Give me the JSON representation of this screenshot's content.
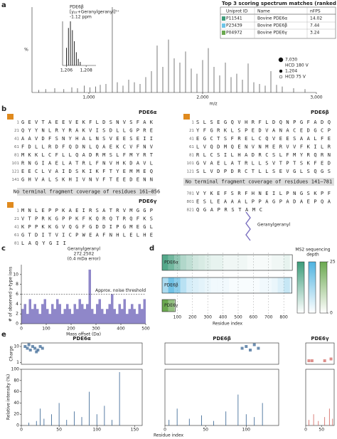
{
  "panels": [
    "a",
    "b",
    "c",
    "d",
    "e"
  ],
  "table": {
    "title": "Top 3 scoring spectrum matches (ranked by nFPS)",
    "headers": [
      "Uniprot ID",
      "Name",
      "nFPS"
    ],
    "rows": [
      {
        "color": "#3c9c7a",
        "cells": [
          "P11541",
          "Bovine PDE6α",
          "14.02"
        ]
      },
      {
        "color": "#6cc4e8",
        "cells": [
          "P23439",
          "Bovine PDE6β",
          "7.44"
        ]
      },
      {
        "color": "#6aa84f",
        "cells": [
          "P04972",
          "Bovine PDE6γ",
          "3.24"
        ]
      }
    ]
  },
  "sequences": {
    "alpha": {
      "title": "PDE6α",
      "numbers": [
        "1",
        "21",
        "41",
        "61",
        "81",
        "101",
        "121",
        "141"
      ],
      "rows": [
        "GEVTAEEVEKFLDSNVSFAK",
        "QYYNLRYRAKVISDLLGPRE",
        "AAVDFSNYHALNSVEESEII",
        "FDLLRDFQDNLQAEKCVFNV",
        "MKKLCFLLQADRMSLFMYRT",
        "RNGIAELATRLFNVHKDAVL",
        "EECLVAIDSKIKFTYEMMEQ",
        "GHVALSKHIVNVFTEEDENN"
      ],
      "note": "No terminal fragment coverage of residues 161–856"
    },
    "gamma": {
      "title": "PDE6γ",
      "numbers": [
        "1",
        "21",
        "41",
        "61",
        "81"
      ],
      "rows": [
        "MNLEPPKAEIRSATRVMGGP",
        "VTPRKGPPKFKQRQTRQFKS",
        "KPPKKGVQGFGDDIPGMEGL",
        "GTDITVICPWEAFNHLELHE",
        "LAQYGII"
      ]
    },
    "beta": {
      "title": "PDE6β",
      "numbers": [
        "1",
        "21",
        "41",
        "61",
        "81",
        "101",
        "121",
        "781",
        "801",
        "821"
      ],
      "rows": [
        "SLSEGQVHRFLDQNPGFADQ",
        "YFGRKLSPEDVANACEDGCP",
        "EGCTSFRELCQVEESAALFE",
        "LVQDMQENVNMERVVFKILR",
        "RLCSILHADRCSLFMYRQRN",
        "GVAELATRLLSVTPTSKFED",
        "SLVDPDRCTLLSEVGLSQGS",
        "VYKEFSRFHNEILPNGSKPF",
        "ESLEAAALPPAGPADAEPQA",
        "QGAPRSTAMC"
      ],
      "note": "No terminal fragment coverage of residues 141–781",
      "modification": "Geranylgeranyl"
    }
  },
  "chart_data": [
    {
      "type": "spectrum",
      "xlabel": "m/z",
      "ylabel": "%",
      "xlim": [
        500,
        3000
      ],
      "ylim": [
        0,
        100
      ],
      "color": "#222222",
      "xticks": [
        {
          "value": 1000,
          "label": "1,000"
        },
        {
          "value": 2000,
          "label": "2,000"
        },
        {
          "value": 3000,
          "label": "3,000"
        }
      ],
      "x": [
        560,
        620,
        700,
        780,
        850,
        900,
        960,
        1010,
        1060,
        1100,
        1150,
        1206,
        1250,
        1300,
        1350,
        1400,
        1450,
        1500,
        1550,
        1600,
        1650,
        1700,
        1750,
        1800,
        1850,
        1900,
        1950,
        2000,
        2050,
        2100,
        2150,
        2200,
        2250,
        2300,
        2350,
        2400,
        2450,
        2500,
        2550,
        2600,
        2650,
        2700,
        2800,
        2900
      ],
      "values": [
        3,
        4,
        5,
        4,
        6,
        5,
        8,
        6,
        7,
        9,
        10,
        100,
        12,
        8,
        15,
        12,
        10,
        18,
        25,
        55,
        30,
        62,
        40,
        35,
        48,
        28,
        22,
        38,
        52,
        30,
        20,
        35,
        18,
        22,
        15,
        34,
        12,
        10,
        8,
        25,
        9,
        7,
        5,
        4
      ],
      "legend": [
        {
          "text": "7,030",
          "marker": "large"
        },
        {
          "text": "HCD 180 V"
        },
        {
          "text": "1,204",
          "marker": "small"
        },
        {
          "text": "HCD 75 V",
          "marker": "open"
        }
      ]
    },
    {
      "type": "spectrum",
      "xlim": [
        1205.6,
        1209
      ],
      "ylim": [
        0,
        100
      ],
      "color": "#222222",
      "xticks": [
        {
          "value": 1206,
          "label": "1,206"
        },
        {
          "value": 1208,
          "label": "1,208"
        }
      ],
      "x": [
        1206.0,
        1206.2,
        1206.4,
        1206.6,
        1206.8,
        1207.0,
        1207.2,
        1207.4
      ],
      "values": [
        40,
        85,
        100,
        80,
        55,
        30,
        15,
        8
      ],
      "annotations": [
        "PDE6β",
        "[y₂₂+Geranylgeranyl]⁵⁺",
        "-1.12 ppm"
      ]
    },
    {
      "type": "histogram",
      "xlabel": "Mass offset (Da)",
      "ylabel": "# of observed y-type ions",
      "color": "#8f87c9",
      "xlim": [
        0,
        500
      ],
      "xticks": [
        0,
        100,
        200,
        300,
        400,
        500
      ],
      "ylim": [
        0,
        12
      ],
      "yticks": [
        0,
        2,
        4,
        6,
        8,
        10
      ],
      "bins": [
        0,
        10,
        20,
        30,
        40,
        50,
        60,
        70,
        80,
        90,
        100,
        110,
        120,
        130,
        140,
        150,
        160,
        170,
        180,
        190,
        200,
        210,
        220,
        230,
        240,
        250,
        260,
        270,
        280,
        290,
        300,
        310,
        320,
        330,
        340,
        350,
        360,
        370,
        380,
        390,
        400,
        410,
        420,
        430,
        440,
        450,
        460,
        470,
        480,
        490,
        500
      ],
      "values": [
        3,
        4,
        2,
        5,
        3,
        4,
        3,
        2,
        4,
        5,
        3,
        2,
        4,
        3,
        5,
        4,
        2,
        3,
        4,
        3,
        2,
        4,
        3,
        5,
        4,
        3,
        4,
        11,
        3,
        2,
        4,
        5,
        3,
        2,
        3,
        4,
        6,
        3,
        2,
        4,
        3,
        5,
        2,
        3,
        4,
        3,
        2,
        4,
        3,
        5
      ],
      "threshold": 6,
      "threshold_label": "Approx. noise threshold",
      "annotations": [
        "Geranylgeranyl",
        "272.2502",
        "(0.4 mDa error)"
      ]
    },
    {
      "type": "heatmap",
      "xlabel": "Residue index",
      "xlim": [
        0,
        860
      ],
      "xticks": [
        100,
        200,
        300,
        400,
        500,
        600,
        700,
        800
      ],
      "bin_width": 40,
      "colorbar_title": [
        "MS2 sequencing",
        "depth"
      ],
      "colorbar_lim": [
        0,
        25
      ],
      "colorbar_ticks": [
        0,
        25
      ],
      "series": [
        {
          "name": "PDE6α",
          "color": "#3c9c7a",
          "length": 856,
          "values": [
            22,
            18,
            14,
            10,
            8,
            6,
            5,
            4,
            3,
            3,
            2,
            2,
            2,
            2,
            1,
            1,
            1,
            1,
            2,
            2,
            3,
            1
          ]
        },
        {
          "name": "PDE6β",
          "color": "#4fb3e0",
          "length": 854,
          "values": [
            12,
            20,
            16,
            10,
            6,
            5,
            4,
            3,
            2,
            2,
            2,
            1,
            1,
            1,
            1,
            1,
            2,
            2,
            3,
            5,
            8,
            4
          ]
        },
        {
          "name": "PDE6γ",
          "color": "#6aa84f",
          "length": 87,
          "values": [
            25,
            18,
            10
          ]
        }
      ]
    },
    {
      "type": "charge_intensity",
      "title": "PDE6α",
      "color": "#2f5e8e",
      "xlim": [
        0,
        160
      ],
      "xticks": [
        0,
        50,
        100,
        150
      ],
      "charge_ylabel": "Charge",
      "charge_ylim": [
        0,
        12
      ],
      "charge_yticks": [
        1,
        10
      ],
      "intensity_ylabel": "Relative intensity (%)",
      "intensity_ylim": [
        0,
        100
      ],
      "intensity_yticks": [
        0,
        20,
        40,
        60,
        80,
        100
      ],
      "charge": {
        "x": [
          5,
          8,
          10,
          12,
          15,
          18,
          20,
          22,
          25,
          28
        ],
        "values": [
          10,
          9,
          11,
          8,
          10,
          9,
          7,
          8,
          10,
          9
        ]
      },
      "intensity": {
        "x": [
          10,
          20,
          25,
          30,
          40,
          50,
          60,
          70,
          80,
          90,
          100,
          110,
          120,
          130
        ],
        "values": [
          5,
          8,
          30,
          12,
          20,
          40,
          10,
          25,
          15,
          60,
          20,
          35,
          10,
          95
        ]
      }
    },
    {
      "type": "charge_intensity",
      "title": "PDE6β",
      "color": "#2f5e8e",
      "xlabel": "Residue index",
      "xlim": [
        0,
        140
      ],
      "xticks": [
        0,
        50,
        100
      ],
      "charge_ylim": [
        0,
        12
      ],
      "intensity_ylim": [
        0,
        100
      ],
      "charge": {
        "x": [
          95,
          100,
          105,
          110,
          115
        ],
        "values": [
          9,
          10,
          8,
          11,
          9
        ]
      },
      "intensity": {
        "x": [
          5,
          15,
          30,
          45,
          60,
          75,
          90,
          100,
          110,
          120
        ],
        "values": [
          10,
          30,
          12,
          18,
          8,
          25,
          55,
          20,
          15,
          40
        ]
      }
    },
    {
      "type": "charge_intensity",
      "title": "PDE6γ",
      "color": "#d0605a",
      "xlim": [
        0,
        90
      ],
      "xticks": [
        0,
        50
      ],
      "charge_ylim": [
        0,
        12
      ],
      "intensity_ylim": [
        0,
        100
      ],
      "charge": {
        "x": [
          10,
          20,
          60,
          80
        ],
        "values": [
          2,
          2,
          2,
          3
        ]
      },
      "intensity": {
        "x": [
          10,
          25,
          40,
          60,
          75,
          85
        ],
        "values": [
          10,
          20,
          8,
          15,
          30,
          12
        ]
      }
    }
  ]
}
